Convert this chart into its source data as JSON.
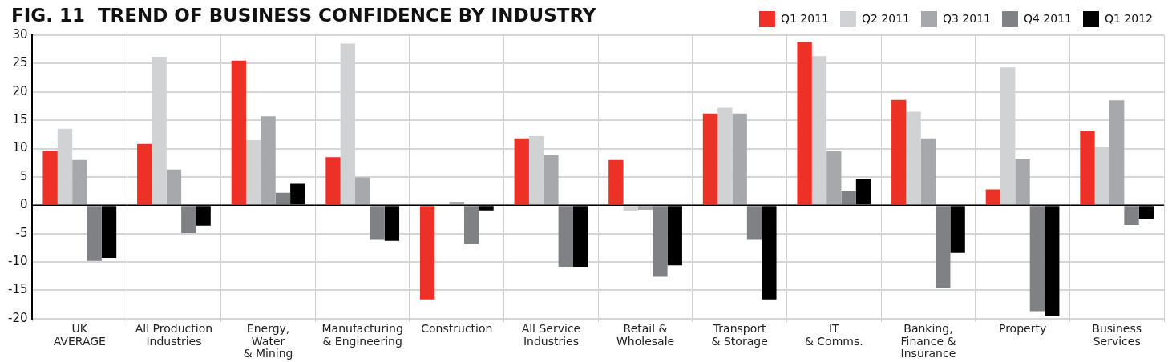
{
  "chart_data": {
    "type": "bar",
    "title": "FIG. 11  TREND OF BUSINESS CONFIDENCE BY INDUSTRY",
    "categories": [
      "UK\nAVERAGE",
      "All Production\nIndustries",
      "Energy,\nWater\n& Mining",
      "Manufacturing\n& Engineering",
      "Construction",
      "All Service\nIndustries",
      "Retail &\nWholesale",
      "Transport\n& Storage",
      "IT\n& Comms.",
      "Banking,\nFinance &\nInsurance",
      "Property",
      "Business\nServices"
    ],
    "series": [
      {
        "name": "Q1 2011",
        "color": "#ee3127",
        "values": [
          9.6,
          10.8,
          25.5,
          8.5,
          -16.6,
          11.8,
          8.0,
          16.2,
          28.8,
          18.6,
          2.8,
          13.1
        ]
      },
      {
        "name": "Q2 2011",
        "color": "#d1d2d4",
        "values": [
          13.5,
          26.2,
          11.5,
          28.5,
          0,
          12.2,
          -1.0,
          17.2,
          26.3,
          16.5,
          24.3,
          10.3
        ]
      },
      {
        "name": "Q3 2011",
        "color": "#a7a8ab",
        "values": [
          8.0,
          6.3,
          15.7,
          4.9,
          0.6,
          8.8,
          -0.8,
          16.2,
          9.5,
          11.8,
          8.2,
          18.5
        ]
      },
      {
        "name": "Q4 2011",
        "color": "#808184",
        "values": [
          -9.8,
          -4.9,
          2.2,
          -6.1,
          -6.9,
          -10.9,
          -12.6,
          -6.1,
          2.6,
          -14.6,
          -18.7,
          -3.5
        ]
      },
      {
        "name": "Q1 2012",
        "color": "#000000",
        "values": [
          -9.3,
          -3.6,
          3.8,
          -6.3,
          -0.9,
          -10.9,
          -10.6,
          -16.6,
          4.6,
          -8.4,
          -19.6,
          -2.4
        ]
      }
    ],
    "ylim": [
      -20,
      30
    ],
    "yticks": [
      -20,
      -15,
      -10,
      -5,
      0,
      5,
      10,
      15,
      20,
      25,
      30
    ],
    "grid": true,
    "legend": "top right"
  }
}
